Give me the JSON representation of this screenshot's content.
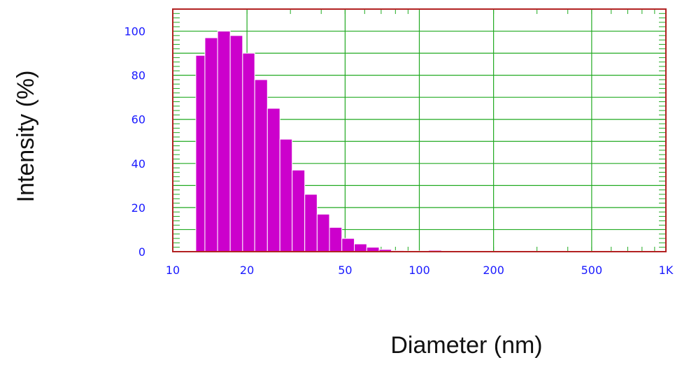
{
  "chart_data": {
    "type": "bar",
    "title": "",
    "xlabel": "Diameter (nm)",
    "ylabel": "Intensity (%)",
    "xscale": "log",
    "xlim": [
      10,
      1000
    ],
    "ylim": [
      0,
      110
    ],
    "x_ticks": [
      10,
      20,
      50,
      100,
      200,
      500,
      1000
    ],
    "x_tick_labels": [
      "10",
      "20",
      "50",
      "100",
      "200",
      "500",
      "1K"
    ],
    "y_ticks": [
      0,
      20,
      40,
      60,
      80,
      100
    ],
    "y_tick_labels": [
      "0",
      "20",
      "40",
      "60",
      "80",
      "100"
    ],
    "grid": true,
    "colors": {
      "bar": "#cc00cc",
      "bar_edge": "#ffffff",
      "grid": "#22aa22",
      "frame": "#b22222",
      "tick_label": "#1a1aff",
      "axis_title": "#111111"
    },
    "bins": [
      {
        "x0": 12.4,
        "x1": 13.5,
        "value": 89
      },
      {
        "x0": 13.5,
        "x1": 15.2,
        "value": 97
      },
      {
        "x0": 15.2,
        "x1": 17.1,
        "value": 100
      },
      {
        "x0": 17.1,
        "x1": 19.2,
        "value": 98
      },
      {
        "x0": 19.2,
        "x1": 21.5,
        "value": 90
      },
      {
        "x0": 21.5,
        "x1": 24.2,
        "value": 78
      },
      {
        "x0": 24.2,
        "x1": 27.2,
        "value": 65
      },
      {
        "x0": 27.2,
        "x1": 30.5,
        "value": 51
      },
      {
        "x0": 30.5,
        "x1": 34.3,
        "value": 37
      },
      {
        "x0": 34.3,
        "x1": 38.5,
        "value": 26
      },
      {
        "x0": 38.5,
        "x1": 43.2,
        "value": 17
      },
      {
        "x0": 43.2,
        "x1": 48.5,
        "value": 11
      },
      {
        "x0": 48.5,
        "x1": 54.5,
        "value": 6
      },
      {
        "x0": 54.5,
        "x1": 61.2,
        "value": 3.5
      },
      {
        "x0": 61.2,
        "x1": 68.7,
        "value": 2
      },
      {
        "x0": 68.7,
        "x1": 77.1,
        "value": 1
      },
      {
        "x0": 77.1,
        "x1": 86.6,
        "value": 0.5
      },
      {
        "x0": 86.6,
        "x1": 97.3,
        "value": 0.3
      },
      {
        "x0": 97.3,
        "x1": 109,
        "value": 0.3
      },
      {
        "x0": 109,
        "x1": 123,
        "value": 0.6
      },
      {
        "x0": 123,
        "x1": 138,
        "value": 0.2
      }
    ]
  }
}
